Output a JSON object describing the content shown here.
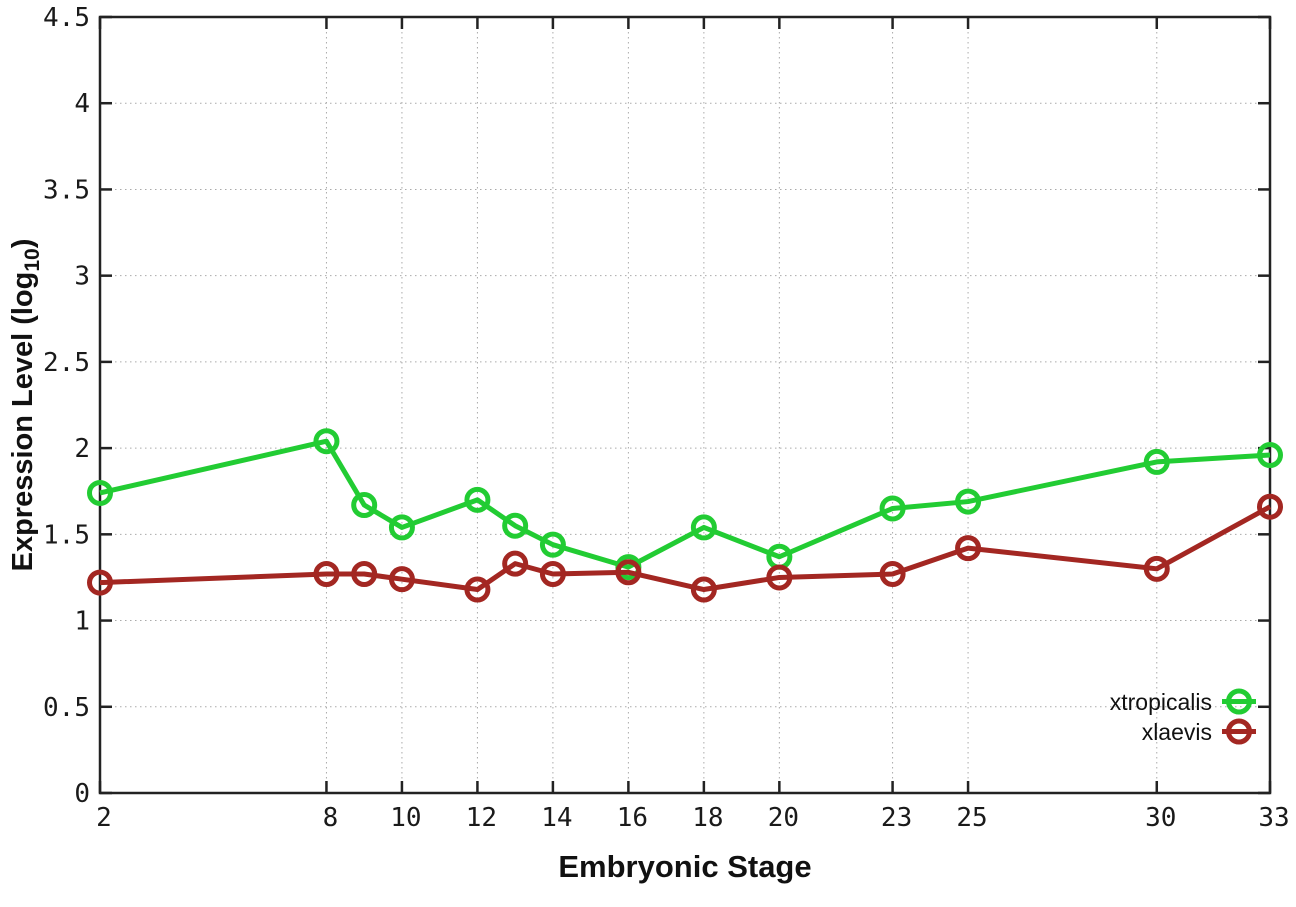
{
  "chart_data": {
    "type": "line",
    "title": "",
    "xlabel": "Embryonic Stage",
    "ylabel": "Expression Level (log10)",
    "ylabel_main": "Expression Level (log",
    "ylabel_sub": "10",
    "ylabel_end": ")",
    "x": [
      2,
      8,
      9,
      10,
      12,
      13,
      14,
      16,
      18,
      20,
      23,
      25,
      30,
      33
    ],
    "x_tick_labels": [
      "2",
      "8",
      "10",
      "12",
      "14",
      "16",
      "18",
      "20",
      "23",
      "25",
      "30",
      "33"
    ],
    "x_tick_values": [
      2,
      8,
      10,
      12,
      14,
      16,
      18,
      20,
      23,
      25,
      30,
      33
    ],
    "xlim": [
      2,
      33
    ],
    "y_tick_labels": [
      "0",
      "0.5",
      "1",
      "1.5",
      "2",
      "2.5",
      "3",
      "3.5",
      "4",
      "4.5"
    ],
    "y_tick_values": [
      0,
      0.5,
      1,
      1.5,
      2,
      2.5,
      3,
      3.5,
      4,
      4.5
    ],
    "ylim": [
      0,
      4.5
    ],
    "grid": true,
    "legend_position": "bottom-right",
    "series": [
      {
        "name": "xtropicalis",
        "color": "#22cc33",
        "values": [
          1.74,
          2.04,
          1.67,
          1.54,
          1.7,
          1.55,
          1.44,
          1.31,
          1.54,
          1.37,
          1.65,
          1.69,
          1.92,
          1.96
        ]
      },
      {
        "name": "xlaevis",
        "color": "#a32722",
        "values": [
          1.22,
          1.27,
          1.27,
          1.24,
          1.18,
          1.33,
          1.27,
          1.28,
          1.18,
          1.25,
          1.27,
          1.42,
          1.3,
          1.66
        ]
      }
    ],
    "style": {
      "border_color": "#222222",
      "grid_color": "#aaaaaa",
      "marker": "open-circle"
    }
  }
}
